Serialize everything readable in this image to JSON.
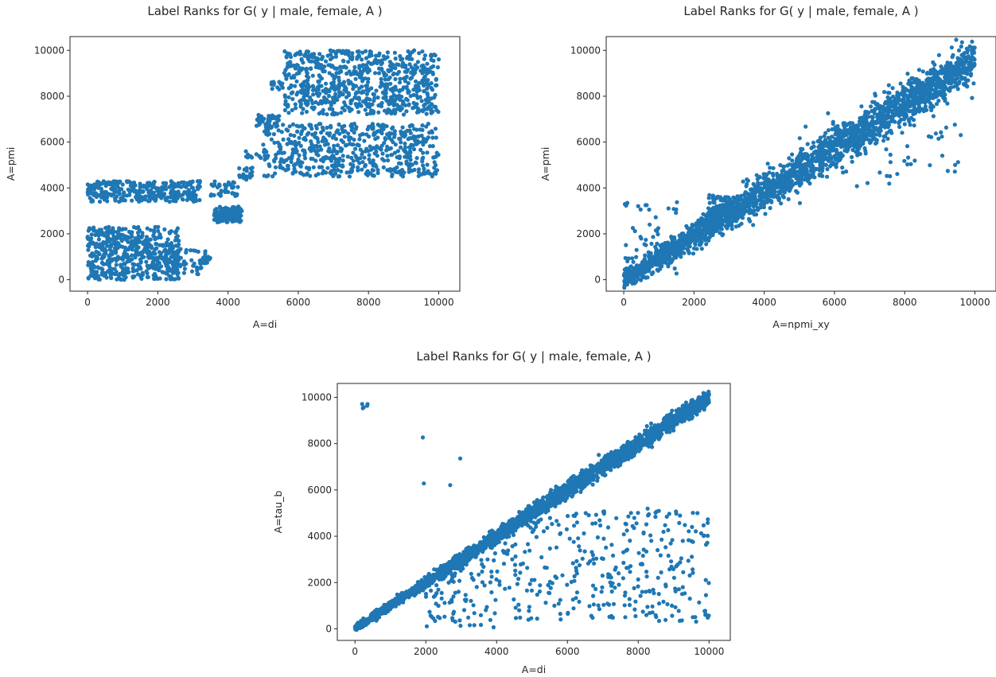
{
  "colors": {
    "points": "#1f77b4",
    "axes": "#262626",
    "background": "#ffffff"
  },
  "chart_data": [
    {
      "type": "scatter",
      "title": "Label Ranks for G( y | male, female, A )",
      "xlabel": "A=di",
      "ylabel": "A=pmi",
      "xlim": [
        -500,
        10600
      ],
      "ylim": [
        -500,
        10600
      ],
      "xticks": [
        0,
        2000,
        4000,
        6000,
        8000,
        10000
      ],
      "yticks": [
        0,
        2000,
        4000,
        6000,
        8000,
        10000
      ],
      "grid": false,
      "legend": "none",
      "series": [
        {
          "pattern": "clusters",
          "clusters": [
            {
              "x": [
                0,
                3200
              ],
              "y": [
                3400,
                4300
              ],
              "n": 320
            },
            {
              "x": [
                0,
                2600
              ],
              "y": [
                0,
                2300
              ],
              "n": 520
            },
            {
              "x": [
                2200,
                3400
              ],
              "y": [
                200,
                1400
              ],
              "n": 60
            },
            {
              "x": [
                3200,
                3500
              ],
              "y": [
                700,
                1000
              ],
              "n": 20
            },
            {
              "x": [
                3500,
                4300
              ],
              "y": [
                3600,
                4300
              ],
              "n": 40
            },
            {
              "x": [
                3600,
                4400
              ],
              "y": [
                2500,
                3200
              ],
              "n": 140
            },
            {
              "x": [
                4300,
                4700
              ],
              "y": [
                4300,
                4900
              ],
              "n": 20
            },
            {
              "x": [
                4500,
                5100
              ],
              "y": [
                5300,
                5600
              ],
              "n": 12
            },
            {
              "x": [
                4800,
                5500
              ],
              "y": [
                6600,
                7200
              ],
              "n": 45
            },
            {
              "x": [
                5200,
                5600
              ],
              "y": [
                8300,
                8700
              ],
              "n": 15
            },
            {
              "x": [
                5000,
                10000
              ],
              "y": [
                4500,
                6800
              ],
              "n": 560
            },
            {
              "x": [
                5600,
                10000
              ],
              "y": [
                7200,
                10000
              ],
              "n": 720
            }
          ]
        }
      ]
    },
    {
      "type": "scatter",
      "title": "Label Ranks for G( y | male, female, A )",
      "xlabel": "A=npmi_xy",
      "ylabel": "A=pmi",
      "xlim": [
        -500,
        10600
      ],
      "ylim": [
        -500,
        10600
      ],
      "xticks": [
        0,
        2000,
        4000,
        6000,
        8000,
        10000
      ],
      "yticks": [
        0,
        2000,
        4000,
        6000,
        8000,
        10000
      ],
      "grid": false,
      "legend": "none",
      "series": [
        {
          "pattern": "diagonal",
          "n": 2400,
          "slope": 0.96,
          "intercept": 0,
          "spread": 450,
          "extra": [
            {
              "x": [
                2400,
                3300
              ],
              "y": [
                2500,
                3700
              ],
              "n": 120
            },
            {
              "x": [
                6000,
                9600
              ],
              "y": [
                4000,
                6800
              ],
              "n": 40
            },
            {
              "x": [
                0,
                1600
              ],
              "y": [
                200,
                3400
              ],
              "n": 60
            }
          ]
        }
      ]
    },
    {
      "type": "scatter",
      "title": "Label Ranks for G( y | male, female, A )",
      "xlabel": "A=di",
      "ylabel": "A=tau_b",
      "xlim": [
        -500,
        10600
      ],
      "ylim": [
        -500,
        10600
      ],
      "xticks": [
        0,
        2000,
        4000,
        6000,
        8000,
        10000
      ],
      "yticks": [
        0,
        2000,
        4000,
        6000,
        8000,
        10000
      ],
      "grid": false,
      "legend": "none",
      "series": [
        {
          "pattern": "diagonal",
          "n": 2600,
          "slope": 1.0,
          "intercept": 0,
          "spread": 180,
          "extra": [
            {
              "x": [
                2000,
                10000
              ],
              "y": [
                300,
                5200
              ],
              "n": 420,
              "below_diagonal": true
            },
            {
              "x": [
                100,
                400
              ],
              "y": [
                9500,
                10000
              ],
              "n": 5
            },
            {
              "x": [
                1500,
                3000
              ],
              "y": [
                6000,
                8300
              ],
              "n": 4
            }
          ]
        }
      ]
    }
  ]
}
